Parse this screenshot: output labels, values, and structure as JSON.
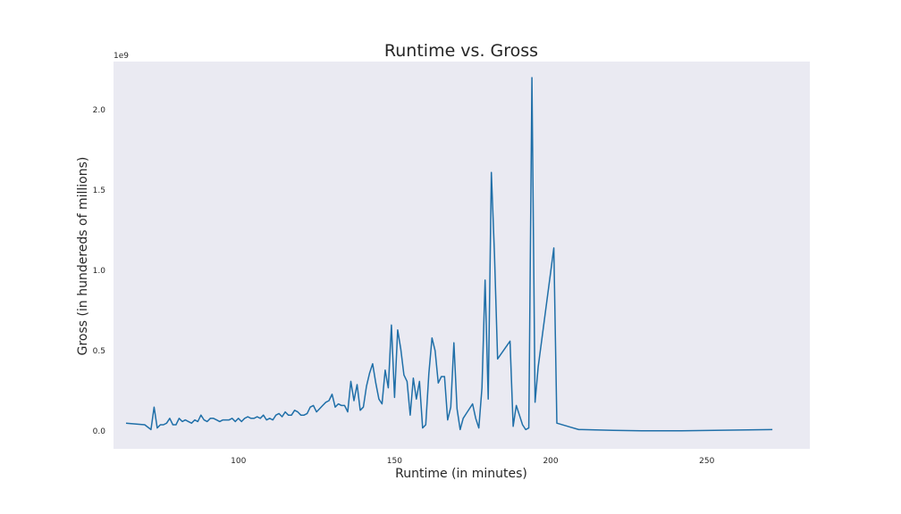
{
  "chart_data": {
    "type": "line",
    "title": "Runtime vs. Gross",
    "xlabel": "Runtime (in minutes)",
    "ylabel": "Gross (in hundereds of millions)",
    "offset_text": "1e9",
    "xlim": [
      60,
      283
    ],
    "ylim": [
      -0.11,
      2.3
    ],
    "x_ticks": [
      100,
      150,
      200,
      250
    ],
    "x_tick_labels": [
      "100",
      "150",
      "200",
      "250"
    ],
    "y_ticks": [
      0.0,
      0.5,
      1.0,
      1.5,
      2.0
    ],
    "y_tick_labels": [
      "0.0",
      "0.5",
      "1.0",
      "1.5",
      "2.0"
    ],
    "grid": false,
    "colors": {
      "line": "#1f6fa8",
      "plot_bg": "#eaeaf2",
      "text": "#262626"
    },
    "series": [
      {
        "x": [
          64,
          70,
          72,
          73,
          74,
          75,
          76,
          77,
          78,
          79,
          80,
          81,
          82,
          83,
          84,
          85,
          86,
          87,
          88,
          89,
          90,
          91,
          92,
          93,
          94,
          95,
          96,
          97,
          98,
          99,
          100,
          101,
          102,
          103,
          104,
          105,
          106,
          107,
          108,
          109,
          110,
          111,
          112,
          113,
          114,
          115,
          116,
          117,
          118,
          119,
          120,
          121,
          122,
          123,
          124,
          125,
          126,
          127,
          128,
          129,
          130,
          131,
          132,
          133,
          134,
          135,
          136,
          137,
          138,
          139,
          140,
          141,
          142,
          143,
          144,
          145,
          146,
          147,
          148,
          149,
          150,
          151,
          152,
          153,
          154,
          155,
          156,
          157,
          158,
          159,
          160,
          161,
          162,
          163,
          164,
          165,
          166,
          167,
          168,
          169,
          170,
          171,
          172,
          173,
          174,
          175,
          176,
          177,
          178,
          179,
          180,
          181,
          182,
          183,
          187,
          188,
          189,
          190,
          191,
          192,
          193,
          194,
          195,
          196,
          201,
          202,
          209,
          210,
          220,
          229,
          242,
          271
        ],
        "y": [
          0.05,
          0.04,
          0.01,
          0.15,
          0.02,
          0.04,
          0.04,
          0.05,
          0.08,
          0.04,
          0.04,
          0.08,
          0.06,
          0.07,
          0.06,
          0.05,
          0.07,
          0.06,
          0.1,
          0.07,
          0.06,
          0.08,
          0.08,
          0.07,
          0.06,
          0.07,
          0.07,
          0.07,
          0.08,
          0.06,
          0.08,
          0.06,
          0.08,
          0.09,
          0.08,
          0.08,
          0.09,
          0.08,
          0.1,
          0.07,
          0.08,
          0.07,
          0.1,
          0.11,
          0.09,
          0.12,
          0.1,
          0.1,
          0.13,
          0.12,
          0.1,
          0.1,
          0.11,
          0.15,
          0.16,
          0.12,
          0.14,
          0.16,
          0.18,
          0.19,
          0.23,
          0.15,
          0.17,
          0.16,
          0.16,
          0.12,
          0.31,
          0.19,
          0.29,
          0.13,
          0.15,
          0.28,
          0.36,
          0.42,
          0.3,
          0.2,
          0.17,
          0.38,
          0.27,
          0.66,
          0.21,
          0.63,
          0.51,
          0.35,
          0.31,
          0.1,
          0.33,
          0.2,
          0.31,
          0.02,
          0.04,
          0.36,
          0.58,
          0.5,
          0.3,
          0.34,
          0.34,
          0.07,
          0.15,
          0.55,
          0.14,
          0.01,
          0.08,
          0.11,
          0.14,
          0.17,
          0.08,
          0.02,
          0.27,
          0.94,
          0.2,
          1.61,
          1.1,
          0.45,
          0.56,
          0.03,
          0.16,
          0.1,
          0.04,
          0.01,
          0.02,
          2.2,
          0.18,
          0.4,
          1.14,
          0.05,
          0.01,
          0.01,
          0.005,
          0.003,
          0.003,
          0.01
        ]
      }
    ]
  }
}
